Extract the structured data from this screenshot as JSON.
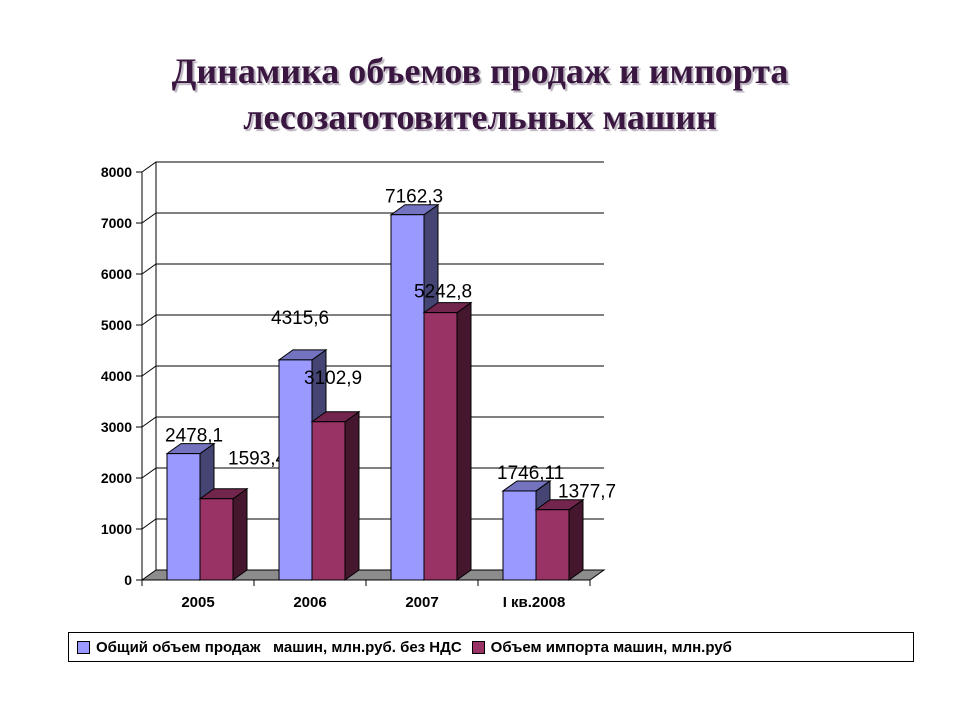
{
  "chart_data": {
    "type": "bar",
    "title_lines": [
      "Динамика объемов продаж и импорта",
      "лесозаготовительных машин"
    ],
    "categories": [
      "2005",
      "2006",
      "2007",
      "I кв.2008"
    ],
    "series": [
      {
        "name": "Общий объем продаж   машин, млн.руб. без НДС",
        "values": [
          2478.1,
          4315.6,
          7162.3,
          1746.11
        ],
        "labels": [
          "2478,1",
          "4315,6",
          "7162,3",
          "1746,11"
        ],
        "color": "#9999ff"
      },
      {
        "name": "Объем импорта машин, млн.руб",
        "values": [
          1593.4,
          3102.9,
          5242.8,
          1377.7
        ],
        "labels": [
          "1593,4",
          "3102,9",
          "5242,8",
          "1377,7"
        ],
        "color": "#993366"
      }
    ],
    "ylim": [
      0,
      8000
    ],
    "yticks": [
      "0",
      "1000",
      "2000",
      "3000",
      "4000",
      "5000",
      "6000",
      "7000",
      "8000"
    ],
    "grid": true,
    "legend_position": "bottom",
    "xlabel": "",
    "ylabel": ""
  }
}
